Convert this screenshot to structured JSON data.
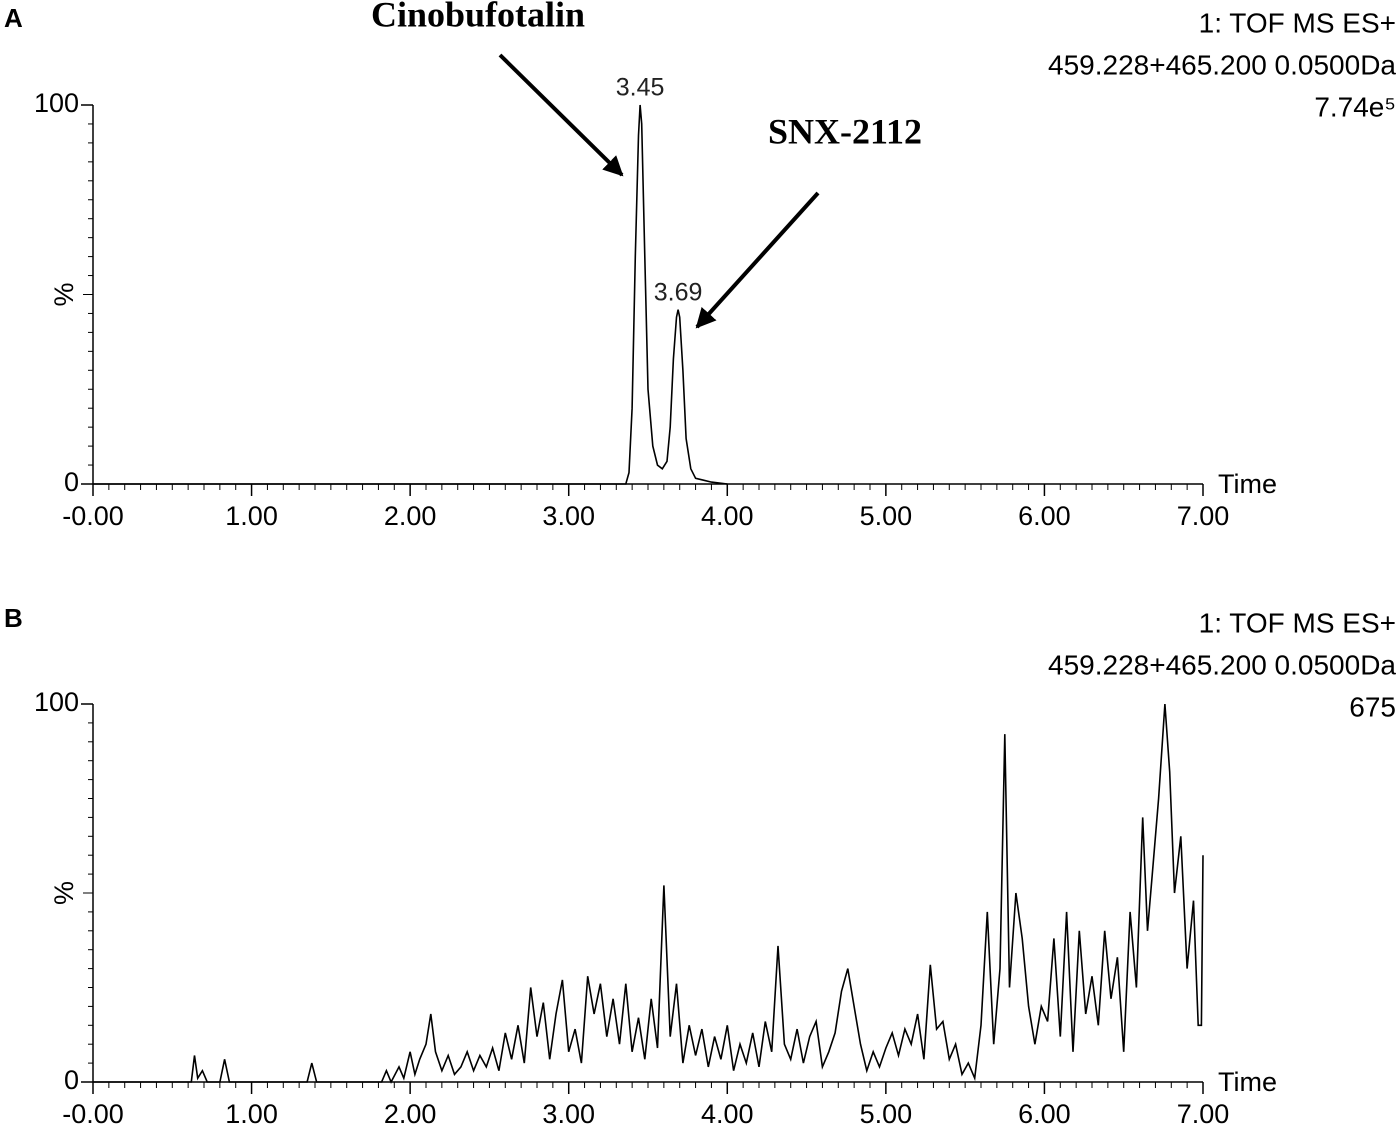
{
  "chart_data": [
    {
      "type": "line",
      "panel": "A",
      "color": "#000000",
      "info": [
        "1: TOF MS ES+",
        "459.228+465.200  0.0500Da",
        "7.74e⁵"
      ],
      "x_label": "Time",
      "y_label": "%",
      "xlim": [
        0,
        7
      ],
      "ylim": [
        0,
        100
      ],
      "xticks": [
        {
          "value": 0,
          "label": "-0.00"
        },
        {
          "value": 1,
          "label": "1.00"
        },
        {
          "value": 2,
          "label": "2.00"
        },
        {
          "value": 3,
          "label": "3.00"
        },
        {
          "value": 4,
          "label": "4.00"
        },
        {
          "value": 5,
          "label": "5.00"
        },
        {
          "value": 6,
          "label": "6.00"
        },
        {
          "value": 7,
          "label": "7.00"
        }
      ],
      "yticks": [
        0,
        100
      ],
      "peak_labels": [
        {
          "x": 3.45,
          "y": 100
        },
        {
          "x": 3.69,
          "y": 46
        }
      ],
      "annotations": [
        "Cinobufotalin",
        "SNX-2112"
      ],
      "x": [
        0,
        3.36,
        3.38,
        3.4,
        3.42,
        3.44,
        3.45,
        3.46,
        3.48,
        3.5,
        3.53,
        3.56,
        3.59,
        3.62,
        3.64,
        3.66,
        3.68,
        3.69,
        3.7,
        3.72,
        3.74,
        3.77,
        3.8,
        3.85,
        3.9,
        4.0
      ],
      "values": [
        0,
        0,
        3,
        20,
        60,
        92,
        100,
        95,
        60,
        25,
        10,
        5,
        4,
        6,
        15,
        33,
        44,
        46,
        44,
        30,
        12,
        4,
        1.5,
        1,
        0.5,
        0
      ]
    },
    {
      "type": "line",
      "panel": "B",
      "color": "#000000",
      "info": [
        "1: TOF MS ES+",
        "459.228+465.200  0.0500Da",
        "675"
      ],
      "x_label": "Time",
      "y_label": "%",
      "xlim": [
        0,
        7
      ],
      "ylim": [
        0,
        100
      ],
      "xticks": [
        {
          "value": 0,
          "label": "-0.00"
        },
        {
          "value": 1,
          "label": "1.00"
        },
        {
          "value": 2,
          "label": "2.00"
        },
        {
          "value": 3,
          "label": "3.00"
        },
        {
          "value": 4,
          "label": "4.00"
        },
        {
          "value": 5,
          "label": "5.00"
        },
        {
          "value": 6,
          "label": "6.00"
        },
        {
          "value": 7,
          "label": "7.00"
        }
      ],
      "yticks": [
        0,
        100
      ],
      "x": [
        0,
        0.62,
        0.64,
        0.66,
        0.69,
        0.72,
        0.8,
        0.83,
        0.86,
        1.35,
        1.38,
        1.41,
        1.82,
        1.85,
        1.88,
        1.93,
        1.96,
        2.0,
        2.03,
        2.06,
        2.1,
        2.13,
        2.16,
        2.2,
        2.24,
        2.28,
        2.32,
        2.36,
        2.4,
        2.44,
        2.48,
        2.52,
        2.56,
        2.6,
        2.64,
        2.68,
        2.72,
        2.76,
        2.8,
        2.84,
        2.88,
        2.92,
        2.96,
        3.0,
        3.04,
        3.08,
        3.12,
        3.16,
        3.2,
        3.24,
        3.28,
        3.32,
        3.36,
        3.4,
        3.44,
        3.48,
        3.52,
        3.56,
        3.6,
        3.64,
        3.68,
        3.72,
        3.76,
        3.8,
        3.84,
        3.88,
        3.92,
        3.96,
        4.0,
        4.04,
        4.08,
        4.12,
        4.16,
        4.2,
        4.24,
        4.28,
        4.32,
        4.36,
        4.4,
        4.44,
        4.48,
        4.52,
        4.56,
        4.6,
        4.64,
        4.68,
        4.72,
        4.76,
        4.8,
        4.84,
        4.88,
        4.92,
        4.96,
        5.0,
        5.04,
        5.08,
        5.12,
        5.16,
        5.2,
        5.24,
        5.28,
        5.32,
        5.36,
        5.4,
        5.44,
        5.48,
        5.52,
        5.56,
        5.6,
        5.64,
        5.68,
        5.72,
        5.75,
        5.78,
        5.82,
        5.86,
        5.9,
        5.94,
        5.98,
        6.02,
        6.06,
        6.1,
        6.14,
        6.18,
        6.22,
        6.26,
        6.3,
        6.34,
        6.38,
        6.42,
        6.46,
        6.5,
        6.54,
        6.58,
        6.62,
        6.65,
        6.68,
        6.72,
        6.76,
        6.79,
        6.82,
        6.86,
        6.9,
        6.94,
        6.97,
        6.99,
        7.0
      ],
      "values": [
        0,
        0,
        7,
        1,
        3,
        0,
        0,
        6,
        0,
        0,
        5,
        0,
        0,
        3,
        0,
        4,
        1,
        8,
        2,
        6,
        10,
        18,
        8,
        3,
        7,
        2,
        4,
        8,
        3,
        7,
        4,
        9,
        3,
        13,
        6,
        15,
        5,
        25,
        12,
        21,
        6,
        18,
        27,
        8,
        14,
        5,
        28,
        18,
        26,
        12,
        22,
        10,
        26,
        8,
        17,
        6,
        22,
        9,
        52,
        12,
        26,
        5,
        15,
        7,
        14,
        4,
        12,
        6,
        15,
        3,
        10,
        5,
        13,
        4,
        16,
        8,
        36,
        10,
        6,
        14,
        5,
        12,
        16,
        4,
        8,
        13,
        24,
        30,
        20,
        10,
        3,
        8,
        4,
        9,
        13,
        7,
        14,
        10,
        18,
        6,
        31,
        14,
        16,
        6,
        10,
        2,
        5,
        1,
        15,
        45,
        10,
        30,
        92,
        25,
        50,
        38,
        20,
        10,
        20,
        16,
        38,
        12,
        45,
        8,
        40,
        18,
        28,
        15,
        40,
        22,
        33,
        8,
        45,
        25,
        70,
        40,
        55,
        75,
        100,
        82,
        50,
        65,
        30,
        48,
        15,
        15,
        60
      ]
    }
  ]
}
